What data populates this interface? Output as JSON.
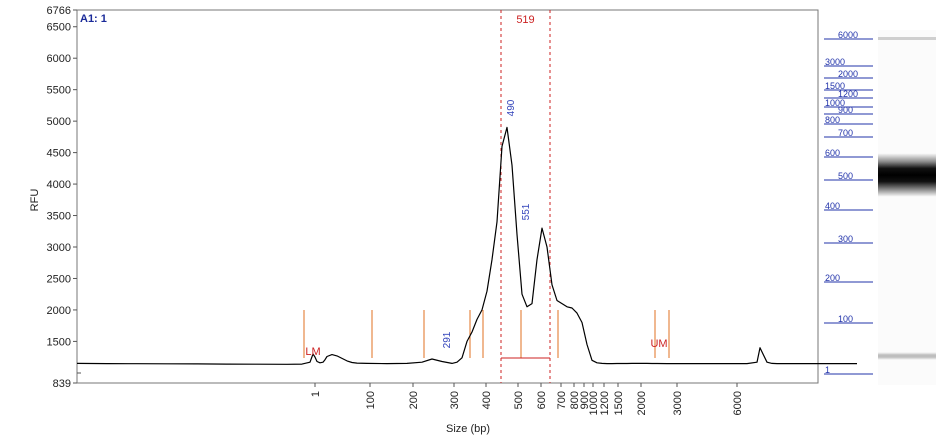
{
  "chart_data": {
    "type": "line",
    "sample_label": "A1: 1",
    "xlabel": "Size (bp)",
    "ylabel": "RFU",
    "ylim": [
      839,
      6766
    ],
    "y_ticks": [
      "6766",
      "6500",
      "6000",
      "5500",
      "5000",
      "4500",
      "4000",
      "3500",
      "3000",
      "2500",
      "2000",
      "1500",
      "839"
    ],
    "x_ticks": [
      "1",
      "100",
      "200",
      "300",
      "400",
      "500",
      "600",
      "700",
      "800",
      "900",
      "1000",
      "1200",
      "1500",
      "2000",
      "3000",
      "6000"
    ],
    "region_label": "519",
    "marker_labels": [
      "LM",
      "UM"
    ],
    "peak_labels": [
      "291",
      "490",
      "551"
    ],
    "series": [
      {
        "x_pos": [
          0,
          30,
          60,
          90,
          120,
          150,
          180,
          210,
          225,
          233,
          236,
          238,
          240,
          243,
          246,
          248,
          250,
          255,
          260,
          265,
          270,
          275,
          280,
          290,
          310,
          330,
          345,
          355,
          365,
          375,
          380,
          385,
          390,
          395,
          400,
          405,
          410,
          415,
          420,
          425,
          430,
          435,
          440,
          445,
          450,
          455,
          460,
          465,
          470,
          475,
          480,
          485,
          490,
          495,
          500,
          505,
          510,
          515,
          520,
          525,
          530,
          535,
          540,
          545,
          550,
          555,
          560,
          565,
          570,
          575,
          580,
          590,
          600,
          620,
          650,
          670,
          680,
          683,
          686,
          690,
          695,
          700,
          740,
          780
        ],
        "rfu": [
          1150,
          1148,
          1146,
          1144,
          1142,
          1140,
          1138,
          1136,
          1140,
          1170,
          1300,
          1250,
          1180,
          1160,
          1170,
          1210,
          1260,
          1290,
          1270,
          1230,
          1190,
          1165,
          1155,
          1150,
          1148,
          1150,
          1170,
          1220,
          1180,
          1150,
          1170,
          1240,
          1500,
          1650,
          1850,
          2000,
          2300,
          2800,
          3400,
          4600,
          4900,
          4300,
          3200,
          2250,
          2050,
          2100,
          2800,
          3300,
          3000,
          2400,
          2150,
          2100,
          2050,
          2030,
          1950,
          1800,
          1450,
          1200,
          1160,
          1150,
          1148,
          1148,
          1149,
          1149,
          1149,
          1150,
          1150,
          1150,
          1150,
          1149,
          1149,
          1148,
          1148,
          1147,
          1147,
          1148,
          1170,
          1400,
          1300,
          1170,
          1150,
          1148,
          1147,
          1147
        ]
      }
    ],
    "ladder_sizes": [
      "6000",
      "3000",
      "2000",
      "1500",
      "1200",
      "1000",
      "900",
      "800",
      "700",
      "600",
      "500",
      "400",
      "300",
      "200",
      "100",
      "1"
    ]
  }
}
